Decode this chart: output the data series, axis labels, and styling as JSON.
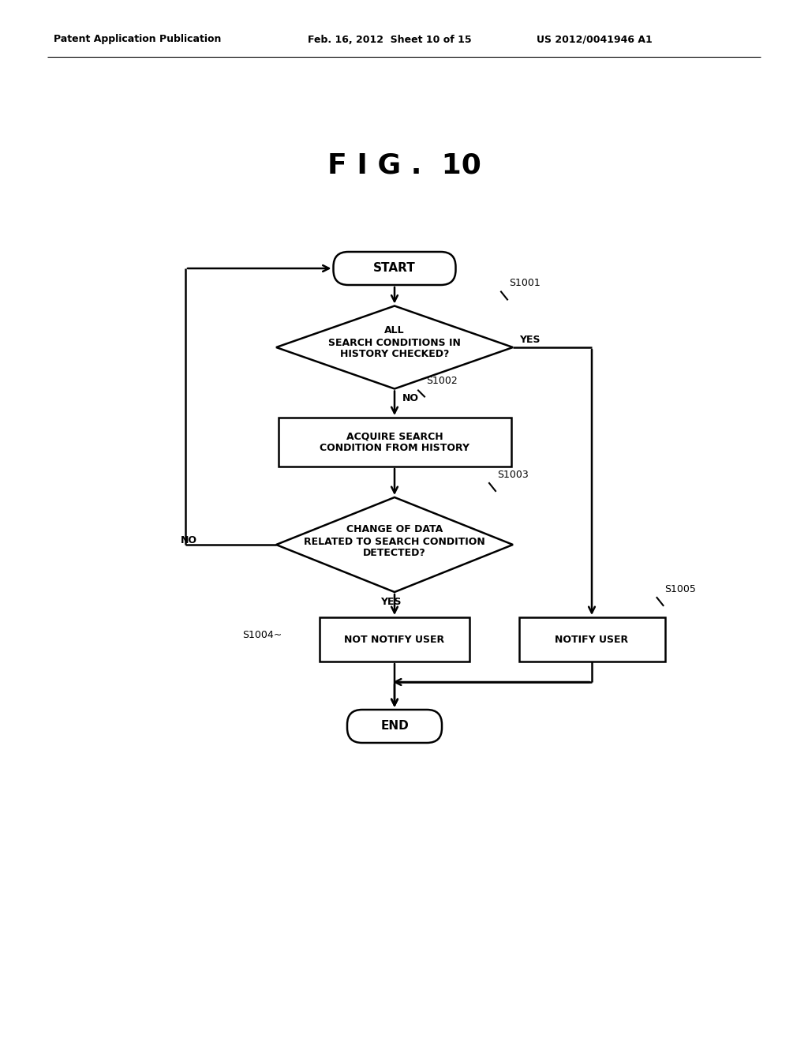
{
  "title": "F I G .  10",
  "header_left": "Patent Application Publication",
  "header_mid": "Feb. 16, 2012  Sheet 10 of 15",
  "header_right": "US 2012/0041946 A1",
  "bg_color": "#ffffff",
  "line_color": "#000000",
  "text_color": "#000000"
}
